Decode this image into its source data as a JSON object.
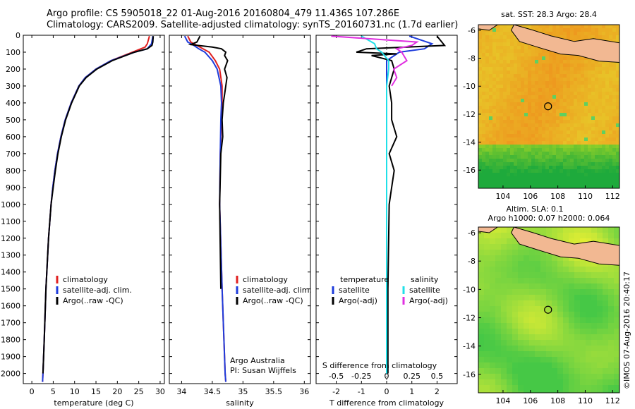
{
  "header": {
    "line1": "Argo profile: CS 5905018_22 01-Aug-2016 20160804_479 11.436S 107.286E",
    "line2": "Climatology: CARS2009. Satellite-adjusted climatology: synTS_20160731.nc (1.7d earlier)"
  },
  "colors": {
    "climatology": "#e02020",
    "satellite": "#1e3cdc",
    "argo": "#000000",
    "salinity_satellite": "#20e0e8",
    "salinity_argo": "#e030e0",
    "land": "#f2b892"
  },
  "chart_data": [
    {
      "type": "line",
      "id": "temperature-profile",
      "xlabel": "temperature (deg C)",
      "ylabel": "",
      "xlim": [
        -2,
        31
      ],
      "ylim": [
        2060,
        0
      ],
      "xticks": [
        0,
        5,
        10,
        15,
        20,
        25,
        30
      ],
      "yticks": [
        0,
        100,
        200,
        300,
        400,
        500,
        600,
        700,
        800,
        900,
        1000,
        1100,
        1200,
        1300,
        1400,
        1500,
        1600,
        1700,
        1800,
        1900,
        2000
      ],
      "legend": {
        "placement": "lower-left",
        "entries": [
          "climatology",
          "satellite-adj. clim.",
          "Argo(..raw -QC)"
        ]
      },
      "series": [
        {
          "name": "climatology",
          "color": "#e02020",
          "depth": [
            5,
            50,
            70,
            100,
            150,
            200,
            250,
            300,
            400,
            500,
            600,
            700,
            800,
            900,
            1000,
            1200,
            1500,
            1800,
            2000,
            2050
          ],
          "values": [
            27.5,
            27.0,
            26.5,
            23.5,
            18.5,
            15.0,
            12.5,
            11.0,
            9.2,
            7.8,
            6.8,
            6.0,
            5.4,
            4.9,
            4.5,
            3.9,
            3.3,
            2.9,
            2.6,
            2.5
          ]
        },
        {
          "name": "satellite-adj. clim.",
          "color": "#1e3cdc",
          "depth": [
            5,
            50,
            80,
            100,
            150,
            200,
            250,
            300,
            400,
            500,
            600,
            700,
            800,
            900,
            1000,
            1200,
            1500,
            1800,
            2000,
            2050
          ],
          "values": [
            28.3,
            28.0,
            27.0,
            24.0,
            18.5,
            15.0,
            12.5,
            11.0,
            9.2,
            7.8,
            6.8,
            6.0,
            5.4,
            4.9,
            4.5,
            3.9,
            3.3,
            2.9,
            2.6,
            2.5
          ]
        },
        {
          "name": "Argo(..raw -QC)",
          "color": "#000000",
          "depth": [
            5,
            40,
            60,
            80,
            100,
            150,
            200,
            250,
            300,
            400,
            500,
            600,
            700,
            800,
            900,
            1000,
            1200,
            1500,
            1800,
            2000
          ],
          "values": [
            28.4,
            28.3,
            28.1,
            27.0,
            24.0,
            18.8,
            15.2,
            12.7,
            11.1,
            9.3,
            7.9,
            6.9,
            6.1,
            5.5,
            5.0,
            4.5,
            3.9,
            3.3,
            2.9,
            2.6
          ]
        }
      ]
    },
    {
      "type": "line",
      "id": "salinity-profile",
      "xlabel": "salinity",
      "ylabel": "",
      "xlim": [
        33.8,
        36.1
      ],
      "ylim": [
        2060,
        0
      ],
      "xticks": [
        34,
        34.5,
        35,
        35.5,
        36
      ],
      "legend": {
        "placement": "lower-right",
        "entries": [
          "climatology",
          "satellite-adj. clim.",
          "Argo(..raw -QC)"
        ]
      },
      "annotation": [
        "Argo Australia",
        "PI: Susan Wijffels"
      ],
      "series": [
        {
          "name": "climatology",
          "color": "#e02020",
          "depth": [
            5,
            40,
            60,
            80,
            100,
            150,
            200,
            300,
            400,
            500,
            700,
            1000,
            1500,
            2000,
            2050
          ],
          "values": [
            34.1,
            34.15,
            34.25,
            34.35,
            34.45,
            34.55,
            34.62,
            34.66,
            34.66,
            34.65,
            34.63,
            34.62,
            34.66,
            34.71,
            34.72
          ]
        },
        {
          "name": "satellite-adj. clim.",
          "color": "#1e3cdc",
          "depth": [
            5,
            40,
            60,
            80,
            100,
            150,
            200,
            300,
            400,
            500,
            700,
            1000,
            1500,
            2000,
            2050
          ],
          "values": [
            34.05,
            34.1,
            34.2,
            34.28,
            34.38,
            34.5,
            34.58,
            34.64,
            34.65,
            34.64,
            34.63,
            34.62,
            34.66,
            34.71,
            34.72
          ]
        },
        {
          "name": "Argo(..raw -QC)",
          "color": "#000000",
          "depth": [
            5,
            40,
            55,
            70,
            80,
            100,
            120,
            150,
            200,
            250,
            300,
            350,
            400,
            500,
            600,
            700,
            1000,
            1500
          ],
          "values": [
            34.3,
            34.25,
            34.15,
            34.5,
            34.65,
            34.72,
            34.7,
            34.75,
            34.7,
            34.74,
            34.72,
            34.7,
            34.68,
            34.66,
            34.67,
            34.64,
            34.62,
            34.64
          ]
        }
      ]
    },
    {
      "type": "line",
      "id": "difference-profile",
      "xlabel": "T difference from climatology",
      "xlabel_top": "S difference from climatology",
      "xlim": [
        -2.8,
        2.8
      ],
      "ylim": [
        2060,
        0
      ],
      "xticks": [
        -2,
        -1,
        0,
        1,
        2
      ],
      "xticks_s": [
        -0.5,
        -0.25,
        0,
        0.25,
        0.5
      ],
      "legend": {
        "placement": "lower-center",
        "columns": [
          {
            "heading": "temperature",
            "entries": [
              "satellite",
              "Argo(-adj)"
            ]
          },
          {
            "heading": "salinity",
            "entries": [
              "satellite",
              "Argo(-adj)"
            ]
          }
        ]
      },
      "series": [
        {
          "name": "temperature satellite",
          "color": "#1e3cdc",
          "depth": [
            5,
            50,
            80,
            100,
            150,
            200,
            300,
            500,
            1000,
            2000
          ],
          "values": [
            0.9,
            1.8,
            1.5,
            0.5,
            0.0,
            0.0,
            0.0,
            0.0,
            0.0,
            0.0
          ]
        },
        {
          "name": "temperature Argo(-adj)",
          "color": "#000000",
          "depth": [
            5,
            60,
            80,
            100,
            110,
            120,
            150,
            200,
            300,
            400,
            500,
            600,
            700,
            800,
            900,
            1000,
            1500,
            2000
          ],
          "values": [
            2.0,
            2.3,
            -0.8,
            -1.2,
            0.4,
            -0.6,
            0.2,
            0.3,
            0.1,
            0.2,
            0.2,
            0.4,
            0.1,
            0.3,
            0.2,
            0.1,
            0.05,
            0.05
          ]
        },
        {
          "name": "salinity satellite",
          "color": "#20e0e8",
          "depth": [
            5,
            50,
            80,
            100,
            150,
            200,
            300,
            500,
            1000,
            2000
          ],
          "values": [
            -0.25,
            -0.12,
            -0.1,
            -0.05,
            0.02,
            0.02,
            0.0,
            0.0,
            0.0,
            0.0
          ]
        },
        {
          "name": "salinity Argo(-adj)",
          "color": "#e030e0",
          "depth": [
            5,
            40,
            60,
            80,
            100,
            150,
            200,
            250,
            300
          ],
          "values": [
            -0.55,
            0.3,
            0.25,
            0.1,
            0.15,
            0.2,
            0.07,
            0.1,
            0.05
          ]
        }
      ]
    },
    {
      "type": "heatmap",
      "id": "sst-map",
      "title": "sat. SST: 28.3  Argo: 28.4",
      "xticks": [
        104,
        106,
        108,
        110,
        112
      ],
      "yticks": [
        -6,
        -8,
        -10,
        -12,
        -14,
        -16
      ],
      "xlim": [
        102.2,
        112.5
      ],
      "ylim": [
        -17.3,
        -5.6
      ],
      "marker": {
        "lon": 107.286,
        "lat": -11.436
      }
    },
    {
      "type": "heatmap",
      "id": "sla-map",
      "title": "Altim. SLA: 0.1",
      "subtitle": "Argo h1000: 0.07 h2000: 0.064",
      "xticks": [
        104,
        106,
        108,
        110,
        112
      ],
      "yticks": [
        -6,
        -8,
        -10,
        -12,
        -14,
        -16
      ],
      "xlim": [
        102.2,
        112.5
      ],
      "ylim": [
        -17.3,
        -5.6
      ],
      "marker": {
        "lon": 107.286,
        "lat": -11.436
      }
    }
  ],
  "footer": {
    "stamp": "©IMOS 07-Aug-2016 20:40:17"
  }
}
